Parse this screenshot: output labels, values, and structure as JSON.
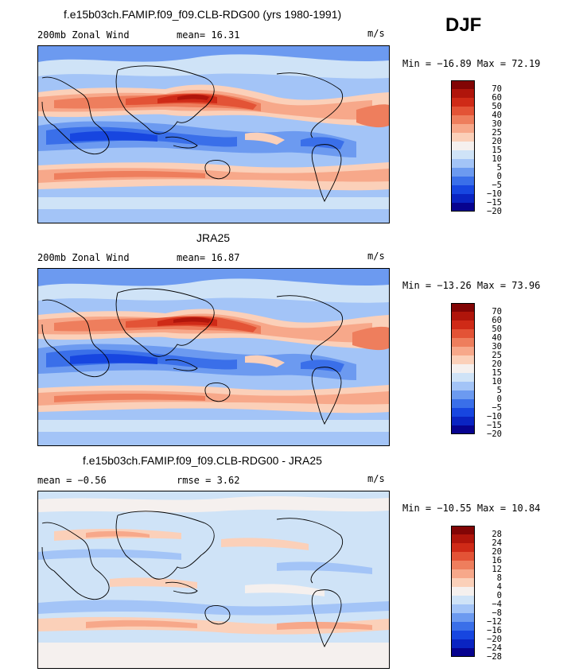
{
  "season": "DJF",
  "colors": {
    "full": [
      "#07038f",
      "#0a24c2",
      "#1746e0",
      "#3a6fe9",
      "#6c9af0",
      "#a3c4f7",
      "#cfe3f7",
      "#f5f0ee",
      "#fbd0b9",
      "#f7a88a",
      "#ee7e5d",
      "#e35336",
      "#cf2a17",
      "#b0150b",
      "#820505"
    ],
    "diff": [
      "#07038f",
      "#0a24c2",
      "#1746e0",
      "#3a6fe9",
      "#6c9af0",
      "#a3c4f7",
      "#cfe3f7",
      "#f5f0ee",
      "#fbd0b9",
      "#f7a88a",
      "#ee7e5d",
      "#e35336",
      "#cf2a17",
      "#b0150b",
      "#820505"
    ]
  },
  "panels": [
    {
      "title": "f.e15b03ch.FAMIP.f09_f09.CLB-RDG00 (yrs 1980-1991)",
      "left_label": "200mb Zonal Wind",
      "mean_label": "mean=  16.31",
      "units": "m/s",
      "minmax": "Min = −16.89 Max =  72.19",
      "levels": [
        "70",
        "60",
        "50",
        "40",
        "30",
        "25",
        "20",
        "15",
        "10",
        "5",
        "0",
        "−5",
        "−10",
        "−15",
        "−20"
      ]
    },
    {
      "title": "JRA25",
      "left_label": "200mb Zonal Wind",
      "mean_label": "mean=  16.87",
      "units": "m/s",
      "minmax": "Min = −13.26 Max =  73.96",
      "levels": [
        "70",
        "60",
        "50",
        "40",
        "30",
        "25",
        "20",
        "15",
        "10",
        "5",
        "0",
        "−5",
        "−10",
        "−15",
        "−20"
      ]
    },
    {
      "title": "f.e15b03ch.FAMIP.f09_f09.CLB-RDG00 - JRA25",
      "left_label": "mean =  −0.56",
      "mean_label": "rmse =   3.62",
      "units": "m/s",
      "minmax": "Min = −10.55 Max =  10.84",
      "levels": [
        "28",
        "24",
        "20",
        "16",
        "12",
        "8",
        "4",
        "0",
        "−4",
        "−8",
        "−12",
        "−16",
        "−20",
        "−24",
        "−28"
      ]
    }
  ]
}
